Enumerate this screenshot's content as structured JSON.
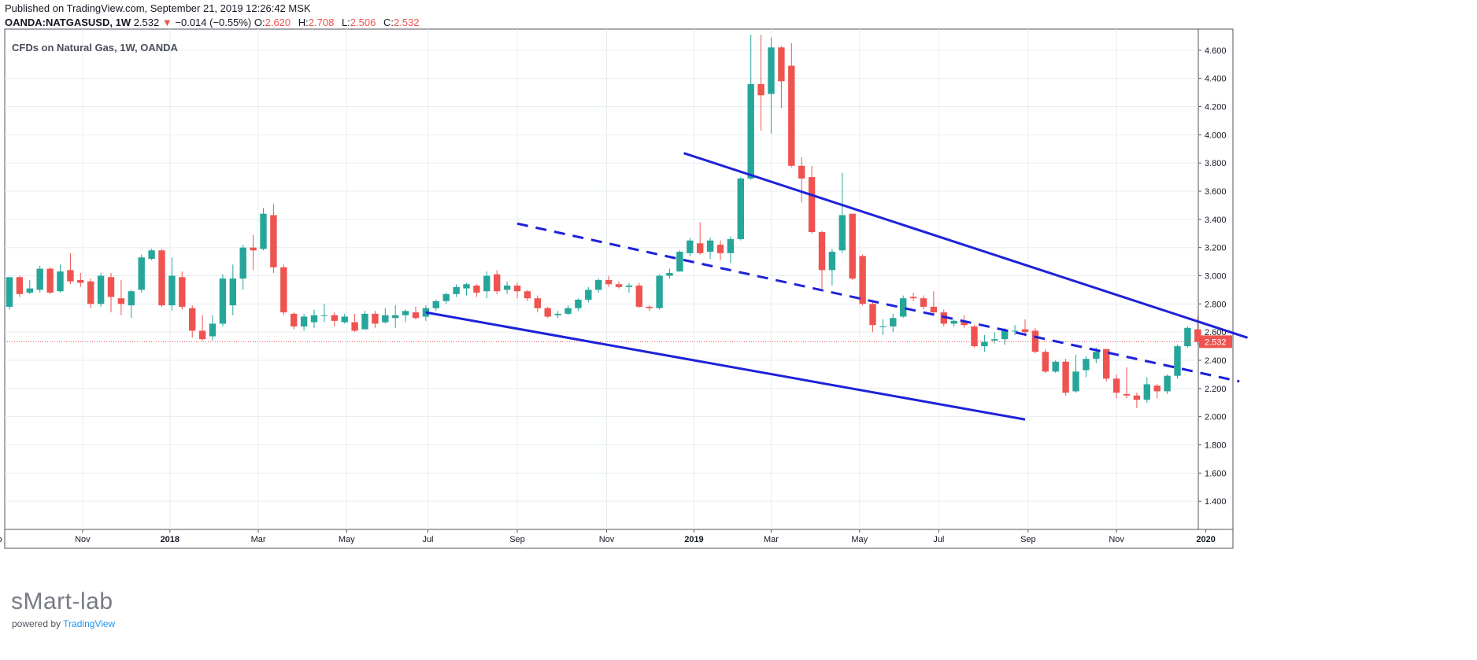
{
  "header": {
    "published": "Published on TradingView.com, September 21, 2019 12:26:42 MSK",
    "symbol": "OANDA:NATGASUSD, 1W",
    "last": "2.532",
    "change": "−0.014 (−0.55%)",
    "o_label": "O:",
    "o": "2.620",
    "h_label": "H:",
    "h": "2.708",
    "l_label": "L:",
    "l": "2.506",
    "c_label": "C:",
    "c": "2.532"
  },
  "watermark": {
    "name": "sMart-lab",
    "powered": "powered by",
    "brand": "TradingView"
  },
  "colors": {
    "up": "#26a69a",
    "down": "#ef5350",
    "trend": "#1e22d8",
    "grid": "#e6eef2",
    "price_line": "#ef5350"
  },
  "chart_data": {
    "type": "candlestick",
    "title": "CFDs on Natural Gas, 1W, OANDA",
    "ylim": [
      1.2,
      4.75
    ],
    "y_ticks": [
      "1.400",
      "1.600",
      "1.800",
      "2.000",
      "2.200",
      "2.400",
      "2.600",
      "2.800",
      "3.000",
      "3.200",
      "3.400",
      "3.600",
      "3.800",
      "4.000",
      "4.200",
      "4.400",
      "4.600"
    ],
    "x_ticks": [
      {
        "label": "Sep",
        "i": -1.5
      },
      {
        "label": "Nov",
        "i": 7.2
      },
      {
        "label": "2018",
        "i": 15.8
      },
      {
        "label": "Mar",
        "i": 24.5
      },
      {
        "label": "May",
        "i": 33.2
      },
      {
        "label": "Jul",
        "i": 41.2
      },
      {
        "label": "Sep",
        "i": 50.0
      },
      {
        "label": "Nov",
        "i": 58.8
      },
      {
        "label": "2019",
        "i": 67.4
      },
      {
        "label": "Mar",
        "i": 75.0
      },
      {
        "label": "May",
        "i": 83.7
      },
      {
        "label": "Jul",
        "i": 91.5
      },
      {
        "label": "Sep",
        "i": 100.3
      },
      {
        "label": "Nov",
        "i": 109.0
      },
      {
        "label": "2020",
        "i": 117.8
      }
    ],
    "last_price": 2.532,
    "last_price_label": "2.532",
    "candles": [
      [
        2.78,
        2.99,
        2.99,
        2.76
      ],
      [
        2.99,
        2.87,
        3.0,
        2.85
      ],
      [
        2.88,
        2.91,
        2.97,
        2.87
      ],
      [
        2.9,
        3.05,
        3.07,
        2.88
      ],
      [
        3.05,
        2.88,
        3.06,
        2.87
      ],
      [
        2.89,
        3.03,
        3.08,
        2.88
      ],
      [
        3.04,
        2.96,
        3.16,
        2.94
      ],
      [
        2.97,
        2.95,
        3.02,
        2.92
      ],
      [
        2.96,
        2.8,
        2.98,
        2.77
      ],
      [
        2.8,
        3.0,
        3.02,
        2.78
      ],
      [
        2.99,
        2.85,
        3.02,
        2.74
      ],
      [
        2.84,
        2.8,
        2.97,
        2.72
      ],
      [
        2.79,
        2.89,
        2.9,
        2.7
      ],
      [
        2.9,
        3.13,
        3.15,
        2.88
      ],
      [
        3.12,
        3.18,
        3.19,
        3.11
      ],
      [
        3.18,
        2.79,
        3.19,
        2.78
      ],
      [
        2.79,
        3.0,
        3.13,
        2.75
      ],
      [
        2.99,
        2.78,
        3.03,
        2.76
      ],
      [
        2.77,
        2.61,
        2.79,
        2.56
      ],
      [
        2.61,
        2.55,
        2.72,
        2.54
      ],
      [
        2.57,
        2.66,
        2.72,
        2.54
      ],
      [
        2.66,
        2.98,
        3.01,
        2.64
      ],
      [
        2.79,
        2.98,
        3.08,
        2.72
      ],
      [
        2.98,
        3.2,
        3.22,
        2.9
      ],
      [
        3.2,
        3.18,
        3.29,
        3.04
      ],
      [
        3.19,
        3.44,
        3.48,
        3.18
      ],
      [
        3.43,
        3.06,
        3.51,
        3.02
      ],
      [
        3.06,
        2.74,
        3.08,
        2.72
      ],
      [
        2.73,
        2.64,
        2.74,
        2.62
      ],
      [
        2.64,
        2.71,
        2.73,
        2.61
      ],
      [
        2.67,
        2.72,
        2.76,
        2.63
      ],
      [
        2.72,
        2.72,
        2.8,
        2.67
      ],
      [
        2.72,
        2.68,
        2.74,
        2.64
      ],
      [
        2.67,
        2.71,
        2.73,
        2.66
      ],
      [
        2.67,
        2.61,
        2.73,
        2.6
      ],
      [
        2.62,
        2.73,
        2.75,
        2.62
      ],
      [
        2.73,
        2.66,
        2.75,
        2.63
      ],
      [
        2.67,
        2.72,
        2.77,
        2.66
      ],
      [
        2.7,
        2.72,
        2.79,
        2.63
      ],
      [
        2.72,
        2.75,
        2.76,
        2.67
      ],
      [
        2.74,
        2.7,
        2.78,
        2.69
      ],
      [
        2.71,
        2.77,
        2.79,
        2.68
      ],
      [
        2.77,
        2.82,
        2.83,
        2.75
      ],
      [
        2.82,
        2.87,
        2.88,
        2.8
      ],
      [
        2.87,
        2.92,
        2.94,
        2.85
      ],
      [
        2.91,
        2.94,
        2.95,
        2.86
      ],
      [
        2.93,
        2.88,
        2.94,
        2.85
      ],
      [
        2.89,
        3.0,
        3.03,
        2.84
      ],
      [
        3.01,
        2.89,
        3.04,
        2.87
      ],
      [
        2.9,
        2.93,
        2.96,
        2.87
      ],
      [
        2.93,
        2.89,
        2.95,
        2.84
      ],
      [
        2.89,
        2.84,
        2.9,
        2.82
      ],
      [
        2.84,
        2.77,
        2.86,
        2.74
      ],
      [
        2.77,
        2.71,
        2.78,
        2.7
      ],
      [
        2.72,
        2.73,
        2.75,
        2.7
      ],
      [
        2.73,
        2.77,
        2.79,
        2.72
      ],
      [
        2.77,
        2.83,
        2.84,
        2.75
      ],
      [
        2.83,
        2.9,
        2.92,
        2.81
      ],
      [
        2.9,
        2.97,
        2.98,
        2.88
      ],
      [
        2.97,
        2.94,
        3.0,
        2.92
      ],
      [
        2.94,
        2.92,
        2.96,
        2.91
      ],
      [
        2.92,
        2.93,
        2.95,
        2.88
      ],
      [
        2.93,
        2.78,
        2.95,
        2.77
      ],
      [
        2.78,
        2.77,
        2.79,
        2.75
      ],
      [
        2.77,
        3.0,
        3.01,
        2.76
      ],
      [
        3.0,
        3.02,
        3.05,
        2.98
      ],
      [
        3.03,
        3.17,
        3.18,
        3.03
      ],
      [
        3.16,
        3.25,
        3.27,
        3.14
      ],
      [
        3.23,
        3.16,
        3.38,
        3.15
      ],
      [
        3.17,
        3.25,
        3.27,
        3.12
      ],
      [
        3.22,
        3.16,
        3.25,
        3.11
      ],
      [
        3.16,
        3.26,
        3.28,
        3.09
      ],
      [
        3.26,
        3.69,
        3.7,
        3.25
      ],
      [
        3.69,
        4.36,
        4.71,
        3.68
      ],
      [
        4.36,
        4.28,
        4.71,
        4.03
      ],
      [
        4.29,
        4.62,
        4.69,
        4.01
      ],
      [
        4.62,
        4.38,
        4.63,
        4.19
      ],
      [
        4.49,
        3.78,
        4.65,
        3.77
      ],
      [
        3.78,
        3.69,
        3.84,
        3.52
      ],
      [
        3.7,
        3.31,
        3.78,
        3.3
      ],
      [
        3.31,
        3.04,
        3.32,
        2.91
      ],
      [
        3.04,
        3.17,
        3.19,
        2.93
      ],
      [
        3.18,
        3.43,
        3.73,
        3.16
      ],
      [
        3.44,
        2.98,
        3.44,
        2.97
      ],
      [
        3.14,
        2.8,
        3.15,
        2.79
      ],
      [
        2.8,
        2.65,
        2.81,
        2.6
      ],
      [
        2.64,
        2.64,
        2.69,
        2.58
      ],
      [
        2.64,
        2.7,
        2.73,
        2.6
      ],
      [
        2.71,
        2.84,
        2.86,
        2.7
      ],
      [
        2.85,
        2.84,
        2.88,
        2.82
      ],
      [
        2.84,
        2.78,
        2.86,
        2.76
      ],
      [
        2.78,
        2.74,
        2.89,
        2.73
      ],
      [
        2.74,
        2.66,
        2.76,
        2.64
      ],
      [
        2.66,
        2.68,
        2.69,
        2.64
      ],
      [
        2.68,
        2.65,
        2.72,
        2.63
      ],
      [
        2.64,
        2.5,
        2.65,
        2.49
      ],
      [
        2.5,
        2.53,
        2.58,
        2.46
      ],
      [
        2.54,
        2.55,
        2.6,
        2.52
      ],
      [
        2.55,
        2.61,
        2.63,
        2.51
      ],
      [
        2.61,
        2.61,
        2.65,
        2.58
      ],
      [
        2.62,
        2.6,
        2.69,
        2.57
      ],
      [
        2.61,
        2.46,
        2.63,
        2.45
      ],
      [
        2.46,
        2.32,
        2.48,
        2.31
      ],
      [
        2.32,
        2.39,
        2.4,
        2.31
      ],
      [
        2.39,
        2.17,
        2.41,
        2.15
      ],
      [
        2.18,
        2.32,
        2.44,
        2.17
      ],
      [
        2.33,
        2.41,
        2.43,
        2.28
      ],
      [
        2.41,
        2.46,
        2.49,
        2.38
      ],
      [
        2.48,
        2.27,
        2.48,
        2.25
      ],
      [
        2.27,
        2.17,
        2.3,
        2.13
      ],
      [
        2.16,
        2.15,
        2.35,
        2.13
      ],
      [
        2.15,
        2.12,
        2.17,
        2.06
      ],
      [
        2.12,
        2.23,
        2.28,
        2.1
      ],
      [
        2.22,
        2.18,
        2.23,
        2.13
      ],
      [
        2.18,
        2.29,
        2.3,
        2.16
      ],
      [
        2.29,
        2.5,
        2.51,
        2.27
      ],
      [
        2.5,
        2.63,
        2.64,
        2.49
      ],
      [
        2.62,
        2.53,
        2.71,
        2.51
      ]
    ],
    "trendlines": [
      {
        "style": "solid",
        "from": [
          66.4,
          3.87
        ],
        "to": [
          121.9,
          2.56
        ]
      },
      {
        "style": "dashed",
        "from": [
          50.0,
          3.37
        ],
        "to": [
          121.1,
          2.25
        ]
      },
      {
        "style": "solid",
        "from": [
          41.0,
          2.74
        ],
        "to": [
          100.0,
          1.98
        ]
      }
    ]
  }
}
